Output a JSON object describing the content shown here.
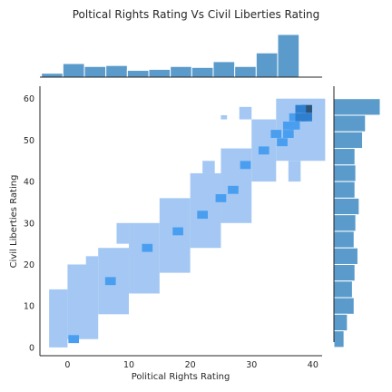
{
  "chart_data": {
    "type": "heatmap",
    "title": "Poltical Rights Rating Vs Civil Liberties Rating",
    "xlabel": "Political Rights Rating",
    "ylabel": "Civil Liberties Rating",
    "xlim": [
      -4.5,
      41.5
    ],
    "ylim": [
      -2,
      63
    ],
    "xticks": [
      0,
      10,
      20,
      30,
      40
    ],
    "yticks": [
      0,
      10,
      20,
      30,
      40,
      50,
      60
    ],
    "grid": false,
    "colors": {
      "joint_light": "#a4c8f3",
      "joint_mid": "#4a9ef0",
      "joint_dark": "#2c5479",
      "marginal": "#5a9bcb",
      "marginal_edge": "#ffffff",
      "axis": "#262626"
    },
    "x_bin_width": 1.733,
    "y_bin_width": 1.933,
    "joint_bins": [
      {
        "x": 39,
        "y": 57.5,
        "c": 4
      },
      {
        "x": 38,
        "y": 57.5,
        "c": 3
      },
      {
        "x": 39,
        "y": 55.5,
        "c": 3
      },
      {
        "x": 37,
        "y": 55.5,
        "c": 2
      },
      {
        "x": 38,
        "y": 55.5,
        "c": 3
      },
      {
        "x": 36,
        "y": 53.5,
        "c": 2
      },
      {
        "x": 37,
        "y": 53.5,
        "c": 2
      },
      {
        "x": 36,
        "y": 51.5,
        "c": 2
      },
      {
        "x": 34,
        "y": 51.5,
        "c": 2
      },
      {
        "x": 35,
        "y": 49.5,
        "c": 2
      },
      {
        "x": 32,
        "y": 47.5,
        "c": 2
      },
      {
        "x": 27,
        "y": 38,
        "c": 2
      },
      {
        "x": 25,
        "y": 36,
        "c": 2
      },
      {
        "x": 29,
        "y": 44,
        "c": 2
      },
      {
        "x": 22,
        "y": 32,
        "c": 2
      },
      {
        "x": 18,
        "y": 28,
        "c": 2
      },
      {
        "x": 13,
        "y": 24,
        "c": 2
      },
      {
        "x": 7,
        "y": 16,
        "c": 2
      },
      {
        "x": 1,
        "y": 2,
        "c": 2
      }
    ],
    "joint_regions": [
      {
        "x0": 28,
        "x1": 30,
        "y0": 55,
        "y1": 58
      },
      {
        "x0": 25,
        "x1": 26,
        "y0": 55,
        "y1": 56
      },
      {
        "x0": 34,
        "x1": 42,
        "y0": 45,
        "y1": 60
      },
      {
        "x0": 30,
        "x1": 34,
        "y0": 40,
        "y1": 55
      },
      {
        "x0": 25,
        "x1": 30,
        "y0": 30,
        "y1": 48
      },
      {
        "x0": 20,
        "x1": 25,
        "y0": 24,
        "y1": 42
      },
      {
        "x0": 15,
        "x1": 20,
        "y0": 18,
        "y1": 36
      },
      {
        "x0": 10,
        "x1": 15,
        "y0": 13,
        "y1": 30
      },
      {
        "x0": 5,
        "x1": 10,
        "y0": 8,
        "y1": 24
      },
      {
        "x0": 0,
        "x1": 5,
        "y0": 2,
        "y1": 20
      },
      {
        "x0": -3,
        "x1": 0,
        "y0": 0,
        "y1": 14
      },
      {
        "x0": 36,
        "x1": 38,
        "y0": 40,
        "y1": 45
      },
      {
        "x0": 22,
        "x1": 24,
        "y0": 42,
        "y1": 45
      },
      {
        "x0": 8,
        "x1": 10,
        "y0": 25,
        "y1": 30
      },
      {
        "x0": 3,
        "x1": 5,
        "y0": 20,
        "y1": 22
      }
    ],
    "top_marginal": [
      {
        "x": -2.5,
        "v": 2
      },
      {
        "x": 1,
        "v": 7
      },
      {
        "x": 4.5,
        "v": 5.5
      },
      {
        "x": 8,
        "v": 6
      },
      {
        "x": 11.5,
        "v": 3.5
      },
      {
        "x": 15,
        "v": 4
      },
      {
        "x": 18.5,
        "v": 5.5
      },
      {
        "x": 22,
        "v": 5
      },
      {
        "x": 25.5,
        "v": 8
      },
      {
        "x": 29,
        "v": 5.5
      },
      {
        "x": 32.5,
        "v": 12.5
      },
      {
        "x": 36,
        "v": 22
      }
    ],
    "right_marginal": [
      {
        "y": 58,
        "v": 11
      },
      {
        "y": 54,
        "v": 7.5
      },
      {
        "y": 50,
        "v": 6.8
      },
      {
        "y": 46,
        "v": 5.0
      },
      {
        "y": 42,
        "v": 5.2
      },
      {
        "y": 38,
        "v": 5.0
      },
      {
        "y": 34,
        "v": 6.0
      },
      {
        "y": 30,
        "v": 5.2
      },
      {
        "y": 26,
        "v": 4.8
      },
      {
        "y": 22,
        "v": 5.7
      },
      {
        "y": 18,
        "v": 5.0
      },
      {
        "y": 14,
        "v": 4.4
      },
      {
        "y": 10,
        "v": 4.8
      },
      {
        "y": 6,
        "v": 3.2
      },
      {
        "y": 2,
        "v": 2.4
      }
    ]
  }
}
